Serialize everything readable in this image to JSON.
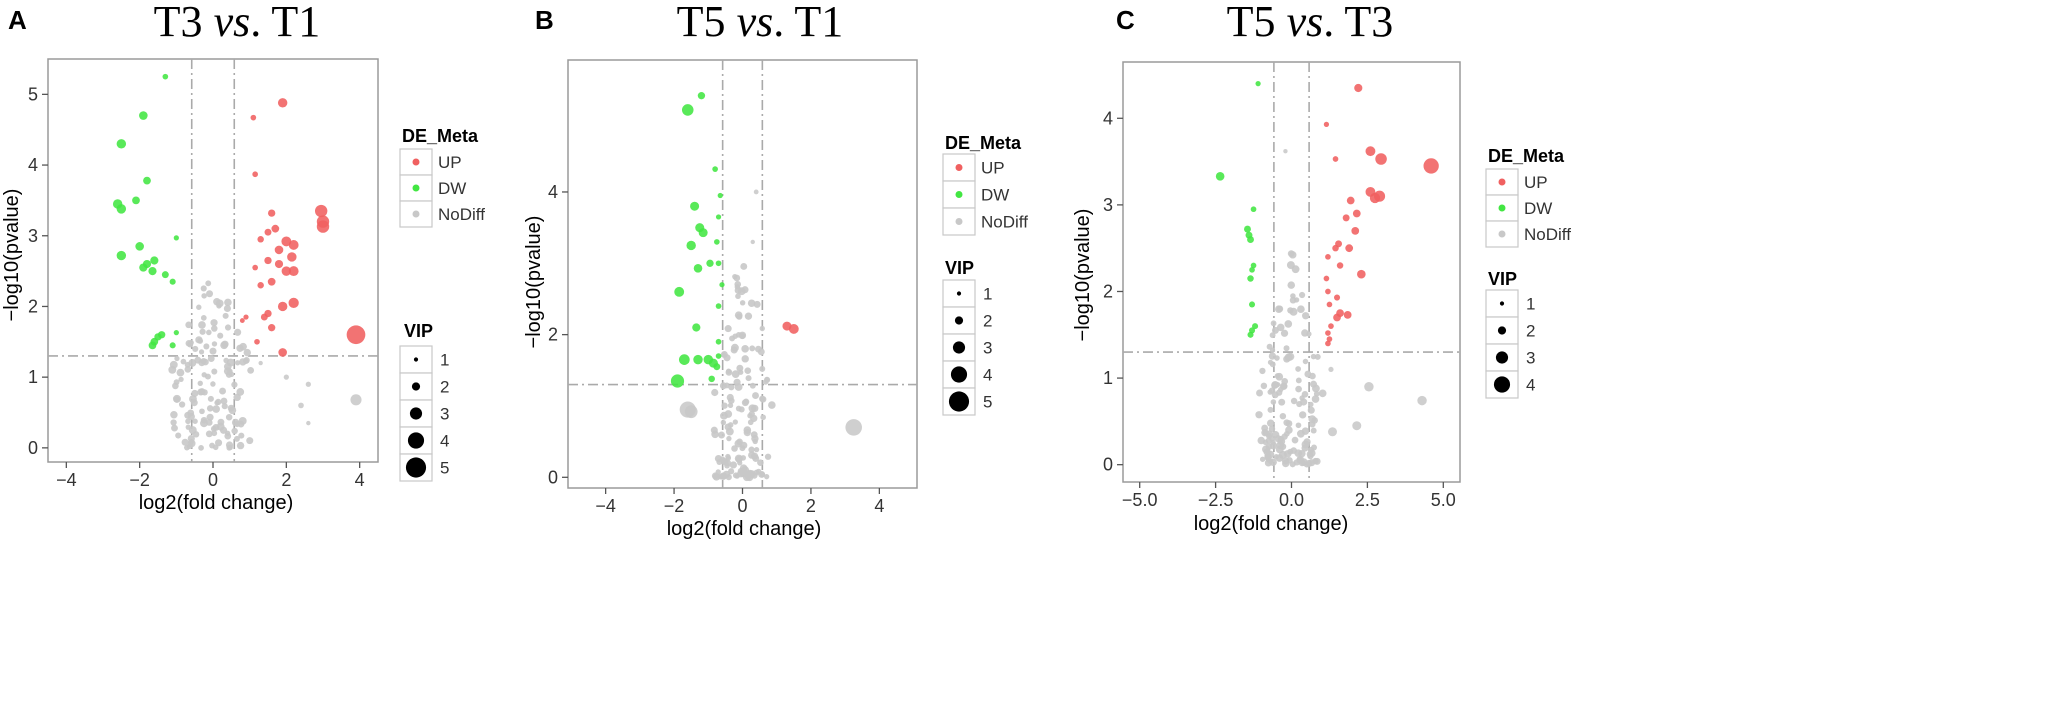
{
  "colors": {
    "up": "#f06060",
    "dw": "#42e642",
    "nodiff": "#c8c8c8",
    "vip": "#000000",
    "guide": "#aaaaaa"
  },
  "chart_data": [
    {
      "panel_letter": "A",
      "type": "scatter",
      "title_parts": [
        "T3 ",
        "vs",
        ". T1"
      ],
      "xlabel": "log2(fold change)",
      "ylabel": "−log10(pvalue)",
      "xlim": [
        -4.5,
        4.5
      ],
      "ylim": [
        -0.2,
        5.5
      ],
      "xticks": [
        -4,
        -2,
        0,
        2,
        4
      ],
      "xtick_labels": [
        "−4",
        "−2",
        "0",
        "2",
        "4"
      ],
      "yticks": [
        0,
        1,
        2,
        3,
        4,
        5
      ],
      "ytick_labels": [
        "0",
        "1",
        "2",
        "3",
        "4",
        "5"
      ],
      "fc_threshold": 0.58,
      "p_threshold": 1.3,
      "legend": {
        "title": "DE_Meta",
        "entries": [
          {
            "label": "UP",
            "class": "up"
          },
          {
            "label": "DW",
            "class": "dw"
          },
          {
            "label": "NoDiff",
            "class": "nodiff"
          }
        ],
        "vip_title": "VIP",
        "vip_values": [
          1,
          2,
          3,
          4,
          5
        ]
      },
      "points": [
        {
          "x": -1.3,
          "y": 5.25,
          "vip": 1.3,
          "class": "dw"
        },
        {
          "x": -1.9,
          "y": 4.7,
          "vip": 2.0,
          "class": "dw"
        },
        {
          "x": -2.5,
          "y": 4.3,
          "vip": 2.2,
          "class": "dw"
        },
        {
          "x": -1.8,
          "y": 3.78,
          "vip": 1.8,
          "class": "dw"
        },
        {
          "x": -2.1,
          "y": 3.5,
          "vip": 1.8,
          "class": "dw"
        },
        {
          "x": -2.6,
          "y": 3.45,
          "vip": 2.2,
          "class": "dw"
        },
        {
          "x": -2.5,
          "y": 3.38,
          "vip": 2.2,
          "class": "dw"
        },
        {
          "x": -1.0,
          "y": 2.97,
          "vip": 1.2,
          "class": "dw"
        },
        {
          "x": -2.0,
          "y": 2.85,
          "vip": 2.0,
          "class": "dw"
        },
        {
          "x": -2.5,
          "y": 2.72,
          "vip": 2.2,
          "class": "dw"
        },
        {
          "x": -1.6,
          "y": 2.65,
          "vip": 1.9,
          "class": "dw"
        },
        {
          "x": -1.8,
          "y": 2.6,
          "vip": 1.9,
          "class": "dw"
        },
        {
          "x": -1.9,
          "y": 2.55,
          "vip": 1.9,
          "class": "dw"
        },
        {
          "x": -1.65,
          "y": 2.5,
          "vip": 1.9,
          "class": "dw"
        },
        {
          "x": -1.3,
          "y": 2.45,
          "vip": 1.6,
          "class": "dw"
        },
        {
          "x": -1.1,
          "y": 2.35,
          "vip": 1.4,
          "class": "dw"
        },
        {
          "x": -1.4,
          "y": 1.6,
          "vip": 1.7,
          "class": "dw"
        },
        {
          "x": -1.5,
          "y": 1.57,
          "vip": 1.7,
          "class": "dw"
        },
        {
          "x": -1.0,
          "y": 1.63,
          "vip": 1.2,
          "class": "dw"
        },
        {
          "x": -1.6,
          "y": 1.5,
          "vip": 1.8,
          "class": "dw"
        },
        {
          "x": -1.65,
          "y": 1.45,
          "vip": 1.8,
          "class": "dw"
        },
        {
          "x": -1.1,
          "y": 1.45,
          "vip": 1.4,
          "class": "dw"
        },
        {
          "x": 1.9,
          "y": 4.88,
          "vip": 2.2,
          "class": "up"
        },
        {
          "x": 1.1,
          "y": 4.67,
          "vip": 1.3,
          "class": "up"
        },
        {
          "x": 1.15,
          "y": 3.87,
          "vip": 1.3,
          "class": "up"
        },
        {
          "x": 1.6,
          "y": 3.32,
          "vip": 1.7,
          "class": "up"
        },
        {
          "x": 2.95,
          "y": 3.35,
          "vip": 2.9,
          "class": "up"
        },
        {
          "x": 3.0,
          "y": 3.2,
          "vip": 2.9,
          "class": "up"
        },
        {
          "x": 3.0,
          "y": 3.13,
          "vip": 2.9,
          "class": "up"
        },
        {
          "x": 1.7,
          "y": 3.1,
          "vip": 1.8,
          "class": "up"
        },
        {
          "x": 1.5,
          "y": 3.05,
          "vip": 1.6,
          "class": "up"
        },
        {
          "x": 1.3,
          "y": 2.95,
          "vip": 1.5,
          "class": "up"
        },
        {
          "x": 2.0,
          "y": 2.92,
          "vip": 2.3,
          "class": "up"
        },
        {
          "x": 2.2,
          "y": 2.87,
          "vip": 2.3,
          "class": "up"
        },
        {
          "x": 1.8,
          "y": 2.8,
          "vip": 2.0,
          "class": "up"
        },
        {
          "x": 2.15,
          "y": 2.7,
          "vip": 2.2,
          "class": "up"
        },
        {
          "x": 1.5,
          "y": 2.65,
          "vip": 1.7,
          "class": "up"
        },
        {
          "x": 1.8,
          "y": 2.6,
          "vip": 1.9,
          "class": "up"
        },
        {
          "x": 1.15,
          "y": 2.55,
          "vip": 1.3,
          "class": "up"
        },
        {
          "x": 2.0,
          "y": 2.5,
          "vip": 2.2,
          "class": "up"
        },
        {
          "x": 2.2,
          "y": 2.5,
          "vip": 2.3,
          "class": "up"
        },
        {
          "x": 1.6,
          "y": 2.35,
          "vip": 1.8,
          "class": "up"
        },
        {
          "x": 1.3,
          "y": 2.3,
          "vip": 1.5,
          "class": "up"
        },
        {
          "x": 2.2,
          "y": 2.05,
          "vip": 2.4,
          "class": "up"
        },
        {
          "x": 1.9,
          "y": 2.0,
          "vip": 2.2,
          "class": "up"
        },
        {
          "x": 1.5,
          "y": 1.9,
          "vip": 1.7,
          "class": "up"
        },
        {
          "x": 1.4,
          "y": 1.85,
          "vip": 1.6,
          "class": "up"
        },
        {
          "x": 0.9,
          "y": 1.85,
          "vip": 1.2,
          "class": "up"
        },
        {
          "x": 0.8,
          "y": 1.8,
          "vip": 1.1,
          "class": "up"
        },
        {
          "x": 1.6,
          "y": 1.7,
          "vip": 1.7,
          "class": "up"
        },
        {
          "x": 1.2,
          "y": 1.5,
          "vip": 1.3,
          "class": "up"
        },
        {
          "x": 1.9,
          "y": 1.35,
          "vip": 2.0,
          "class": "up"
        },
        {
          "x": 3.9,
          "y": 1.6,
          "vip": 4.4,
          "class": "up"
        },
        {
          "x": 3.9,
          "y": 0.68,
          "vip": 2.6,
          "class": "nodiff"
        },
        {
          "x": 2.6,
          "y": 0.9,
          "vip": 1.2,
          "class": "nodiff"
        },
        {
          "x": 2.4,
          "y": 0.6,
          "vip": 1.3,
          "class": "nodiff"
        },
        {
          "x": 2.6,
          "y": 0.35,
          "vip": 1.0,
          "class": "nodiff"
        },
        {
          "x": 2.0,
          "y": 1.0,
          "vip": 1.2,
          "class": "nodiff"
        },
        {
          "x": 1.3,
          "y": 1.2,
          "vip": 1.0,
          "class": "nodiff"
        }
      ],
      "nodiff_cloud": {
        "n": 140,
        "seed": 11,
        "xmin": -1.3,
        "xmax": 1.2,
        "ymax": 2.7
      }
    },
    {
      "panel_letter": "B",
      "type": "scatter",
      "title_parts": [
        "T5 ",
        "vs",
        ". T1"
      ],
      "xlabel": "log2(fold change)",
      "ylabel": "−log10(pvalue)",
      "xlim": [
        -5.1,
        5.1
      ],
      "ylim": [
        -0.15,
        5.85
      ],
      "xticks": [
        -4,
        -2,
        0,
        2,
        4
      ],
      "xtick_labels": [
        "−4",
        "−2",
        "0",
        "2",
        "4"
      ],
      "yticks": [
        0,
        2,
        4
      ],
      "ytick_labels": [
        "0",
        "2",
        "4"
      ],
      "fc_threshold": 0.58,
      "p_threshold": 1.3,
      "legend": {
        "title": "DE_Meta",
        "entries": [
          {
            "label": "UP",
            "class": "up"
          },
          {
            "label": "DW",
            "class": "dw"
          },
          {
            "label": "NoDiff",
            "class": "nodiff"
          }
        ],
        "vip_title": "VIP",
        "vip_values": [
          1,
          2,
          3,
          4,
          5
        ]
      },
      "points": [
        {
          "x": -1.2,
          "y": 5.35,
          "vip": 1.7,
          "class": "dw"
        },
        {
          "x": -1.6,
          "y": 5.15,
          "vip": 2.7,
          "class": "dw"
        },
        {
          "x": -0.8,
          "y": 4.32,
          "vip": 1.3,
          "class": "dw"
        },
        {
          "x": -0.65,
          "y": 3.95,
          "vip": 1.2,
          "class": "dw"
        },
        {
          "x": -1.4,
          "y": 3.8,
          "vip": 2.1,
          "class": "dw"
        },
        {
          "x": -0.7,
          "y": 3.65,
          "vip": 1.2,
          "class": "dw"
        },
        {
          "x": -1.25,
          "y": 3.5,
          "vip": 2.1,
          "class": "dw"
        },
        {
          "x": -1.15,
          "y": 3.43,
          "vip": 2.1,
          "class": "dw"
        },
        {
          "x": -1.5,
          "y": 3.25,
          "vip": 2.2,
          "class": "dw"
        },
        {
          "x": -0.75,
          "y": 3.3,
          "vip": 1.3,
          "class": "dw"
        },
        {
          "x": -0.95,
          "y": 3.0,
          "vip": 1.7,
          "class": "dw"
        },
        {
          "x": -0.7,
          "y": 3.0,
          "vip": 1.3,
          "class": "dw"
        },
        {
          "x": -1.3,
          "y": 2.93,
          "vip": 2.0,
          "class": "dw"
        },
        {
          "x": -0.6,
          "y": 2.7,
          "vip": 1.2,
          "class": "dw"
        },
        {
          "x": -1.85,
          "y": 2.6,
          "vip": 2.3,
          "class": "dw"
        },
        {
          "x": -0.7,
          "y": 2.4,
          "vip": 1.3,
          "class": "dw"
        },
        {
          "x": -1.35,
          "y": 2.1,
          "vip": 1.9,
          "class": "dw"
        },
        {
          "x": -0.7,
          "y": 1.9,
          "vip": 1.3,
          "class": "dw"
        },
        {
          "x": -0.7,
          "y": 1.7,
          "vip": 1.3,
          "class": "dw"
        },
        {
          "x": -1.7,
          "y": 1.65,
          "vip": 2.5,
          "class": "dw"
        },
        {
          "x": -1.3,
          "y": 1.65,
          "vip": 2.2,
          "class": "dw"
        },
        {
          "x": -1.0,
          "y": 1.65,
          "vip": 2.2,
          "class": "dw"
        },
        {
          "x": -0.85,
          "y": 1.6,
          "vip": 2.1,
          "class": "dw"
        },
        {
          "x": -0.75,
          "y": 1.55,
          "vip": 1.6,
          "class": "dw"
        },
        {
          "x": -1.9,
          "y": 1.35,
          "vip": 3.1,
          "class": "dw"
        },
        {
          "x": -0.9,
          "y": 1.38,
          "vip": 1.5,
          "class": "dw"
        },
        {
          "x": 1.3,
          "y": 2.12,
          "vip": 2.1,
          "class": "up"
        },
        {
          "x": 1.5,
          "y": 2.08,
          "vip": 2.3,
          "class": "up"
        },
        {
          "x": 3.25,
          "y": 0.7,
          "vip": 3.9,
          "class": "nodiff"
        },
        {
          "x": -1.6,
          "y": 0.95,
          "vip": 3.8,
          "class": "nodiff"
        },
        {
          "x": -1.5,
          "y": 0.92,
          "vip": 3.0,
          "class": "nodiff"
        },
        {
          "x": 0.4,
          "y": 4.0,
          "vip": 1.1,
          "class": "nodiff"
        },
        {
          "x": 0.3,
          "y": 3.3,
          "vip": 1.0,
          "class": "nodiff"
        }
      ],
      "nodiff_cloud": {
        "n": 140,
        "seed": 23,
        "xmin": -0.9,
        "xmax": 0.9,
        "ymax": 3.4
      }
    },
    {
      "panel_letter": "C",
      "type": "scatter",
      "title_parts": [
        "T5 ",
        "vs",
        ". T3"
      ],
      "xlabel": "log2(fold change)",
      "ylabel": "−log10(pvalue)",
      "xlim": [
        -5.55,
        5.55
      ],
      "ylim": [
        -0.2,
        4.65
      ],
      "xticks": [
        -5,
        -2.5,
        0,
        2.5,
        5
      ],
      "xtick_labels": [
        "−5.0",
        "−2.5",
        "0.0",
        "2.5",
        "5.0"
      ],
      "yticks": [
        0,
        1,
        2,
        3,
        4
      ],
      "ytick_labels": [
        "0",
        "1",
        "2",
        "3",
        "4"
      ],
      "fc_threshold": 0.58,
      "p_threshold": 1.3,
      "legend": {
        "title": "DE_Meta",
        "entries": [
          {
            "label": "UP",
            "class": "up"
          },
          {
            "label": "DW",
            "class": "dw"
          },
          {
            "label": "NoDiff",
            "class": "nodiff"
          }
        ],
        "vip_title": "VIP",
        "vip_values": [
          1,
          2,
          3,
          4
        ]
      },
      "points": [
        {
          "x": -1.1,
          "y": 4.4,
          "vip": 1.2,
          "class": "dw"
        },
        {
          "x": -2.35,
          "y": 3.33,
          "vip": 2.0,
          "class": "dw"
        },
        {
          "x": -1.25,
          "y": 2.95,
          "vip": 1.3,
          "class": "dw"
        },
        {
          "x": -1.45,
          "y": 2.72,
          "vip": 1.6,
          "class": "dw"
        },
        {
          "x": -1.4,
          "y": 2.65,
          "vip": 1.6,
          "class": "dw"
        },
        {
          "x": -1.35,
          "y": 2.6,
          "vip": 1.6,
          "class": "dw"
        },
        {
          "x": -1.25,
          "y": 2.3,
          "vip": 1.3,
          "class": "dw"
        },
        {
          "x": -1.3,
          "y": 2.25,
          "vip": 1.3,
          "class": "dw"
        },
        {
          "x": -1.35,
          "y": 2.15,
          "vip": 1.5,
          "class": "dw"
        },
        {
          "x": -1.3,
          "y": 1.85,
          "vip": 1.4,
          "class": "dw"
        },
        {
          "x": -1.2,
          "y": 1.6,
          "vip": 1.4,
          "class": "dw"
        },
        {
          "x": -1.3,
          "y": 1.55,
          "vip": 1.4,
          "class": "dw"
        },
        {
          "x": -1.35,
          "y": 1.5,
          "vip": 1.4,
          "class": "dw"
        },
        {
          "x": 2.2,
          "y": 4.35,
          "vip": 1.9,
          "class": "up"
        },
        {
          "x": 1.15,
          "y": 3.93,
          "vip": 1.2,
          "class": "up"
        },
        {
          "x": 2.6,
          "y": 3.62,
          "vip": 2.3,
          "class": "up"
        },
        {
          "x": 2.95,
          "y": 3.53,
          "vip": 2.7,
          "class": "up"
        },
        {
          "x": 1.45,
          "y": 3.53,
          "vip": 1.3,
          "class": "up"
        },
        {
          "x": 4.6,
          "y": 3.45,
          "vip": 3.6,
          "class": "up"
        },
        {
          "x": 2.6,
          "y": 3.15,
          "vip": 2.3,
          "class": "up"
        },
        {
          "x": 2.9,
          "y": 3.1,
          "vip": 2.6,
          "class": "up"
        },
        {
          "x": 2.75,
          "y": 3.08,
          "vip": 2.4,
          "class": "up"
        },
        {
          "x": 1.95,
          "y": 3.05,
          "vip": 1.8,
          "class": "up"
        },
        {
          "x": 2.15,
          "y": 2.9,
          "vip": 1.8,
          "class": "up"
        },
        {
          "x": 1.8,
          "y": 2.85,
          "vip": 1.6,
          "class": "up"
        },
        {
          "x": 2.1,
          "y": 2.7,
          "vip": 1.8,
          "class": "up"
        },
        {
          "x": 1.55,
          "y": 2.55,
          "vip": 1.6,
          "class": "up"
        },
        {
          "x": 1.45,
          "y": 2.5,
          "vip": 1.5,
          "class": "up"
        },
        {
          "x": 1.9,
          "y": 2.5,
          "vip": 1.8,
          "class": "up"
        },
        {
          "x": 1.2,
          "y": 2.4,
          "vip": 1.3,
          "class": "up"
        },
        {
          "x": 1.6,
          "y": 2.3,
          "vip": 1.5,
          "class": "up"
        },
        {
          "x": 2.3,
          "y": 2.2,
          "vip": 2.0,
          "class": "up"
        },
        {
          "x": 1.15,
          "y": 2.15,
          "vip": 1.3,
          "class": "up"
        },
        {
          "x": 1.2,
          "y": 2.0,
          "vip": 1.3,
          "class": "up"
        },
        {
          "x": 1.5,
          "y": 1.93,
          "vip": 1.4,
          "class": "up"
        },
        {
          "x": 1.25,
          "y": 1.85,
          "vip": 1.3,
          "class": "up"
        },
        {
          "x": 1.6,
          "y": 1.75,
          "vip": 1.8,
          "class": "up"
        },
        {
          "x": 1.85,
          "y": 1.73,
          "vip": 1.8,
          "class": "up"
        },
        {
          "x": 1.5,
          "y": 1.7,
          "vip": 1.8,
          "class": "up"
        },
        {
          "x": 1.3,
          "y": 1.6,
          "vip": 1.3,
          "class": "up"
        },
        {
          "x": 1.2,
          "y": 1.52,
          "vip": 1.3,
          "class": "up"
        },
        {
          "x": 1.25,
          "y": 1.45,
          "vip": 1.3,
          "class": "up"
        },
        {
          "x": 1.2,
          "y": 1.4,
          "vip": 1.3,
          "class": "up"
        },
        {
          "x": 2.55,
          "y": 0.9,
          "vip": 2.2,
          "class": "nodiff"
        },
        {
          "x": 4.3,
          "y": 0.74,
          "vip": 2.2,
          "class": "nodiff"
        },
        {
          "x": 2.15,
          "y": 0.45,
          "vip": 2.1,
          "class": "nodiff"
        },
        {
          "x": 1.35,
          "y": 0.38,
          "vip": 2.1,
          "class": "nodiff"
        },
        {
          "x": -0.2,
          "y": 3.62,
          "vip": 1.0,
          "class": "nodiff"
        },
        {
          "x": 1.3,
          "y": 1.1,
          "vip": 1.2,
          "class": "nodiff"
        }
      ],
      "nodiff_cloud": {
        "n": 150,
        "seed": 37,
        "xmin": -1.2,
        "xmax": 1.2,
        "ymax": 2.55
      }
    }
  ]
}
